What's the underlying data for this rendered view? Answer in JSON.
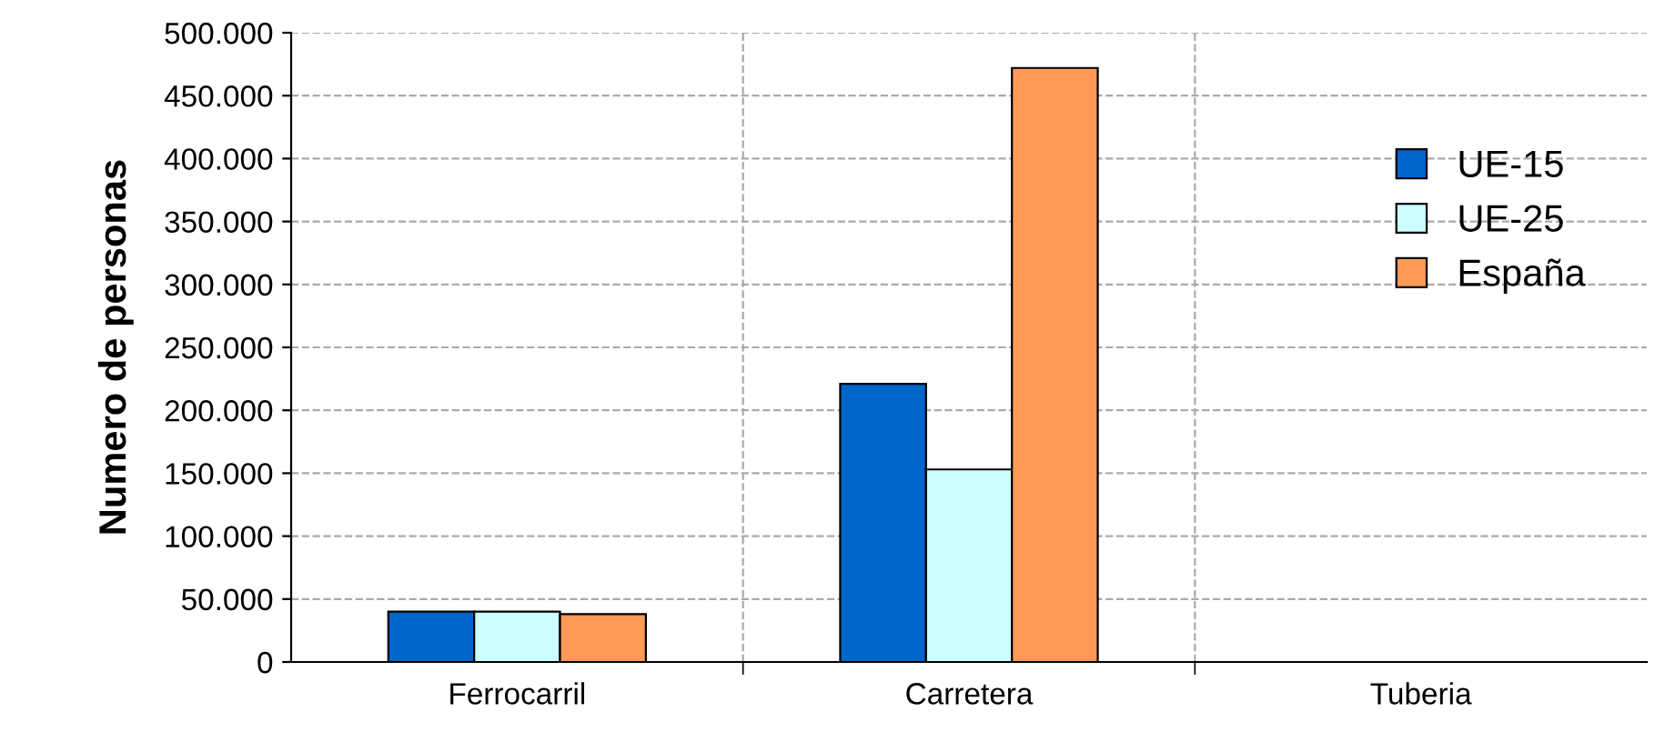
{
  "chart_data": {
    "type": "bar",
    "ylabel": "Numero de personas",
    "categories": [
      "Ferrocarril",
      "Carretera",
      "Tuberia"
    ],
    "series": [
      {
        "name": "UE-15",
        "color": "#0066cc",
        "values": [
          40000,
          221000,
          null
        ]
      },
      {
        "name": "UE-25",
        "color": "#ccffff",
        "values": [
          40000,
          153000,
          null
        ]
      },
      {
        "name": "España",
        "color": "#ff9955",
        "values": [
          38000,
          472000,
          null
        ]
      }
    ],
    "ylim": [
      0,
      500000
    ],
    "yticks": [
      {
        "value": 0,
        "label": "0"
      },
      {
        "value": 50000,
        "label": "50.000"
      },
      {
        "value": 100000,
        "label": "100.000"
      },
      {
        "value": 150000,
        "label": "150.000"
      },
      {
        "value": 200000,
        "label": "200.000"
      },
      {
        "value": 250000,
        "label": "250.000"
      },
      {
        "value": 300000,
        "label": "300.000"
      },
      {
        "value": 350000,
        "label": "350.000"
      },
      {
        "value": 400000,
        "label": "400.000"
      },
      {
        "value": 450000,
        "label": "450.000"
      },
      {
        "value": 500000,
        "label": "500.000"
      }
    ],
    "grid": true,
    "legend": "right"
  }
}
